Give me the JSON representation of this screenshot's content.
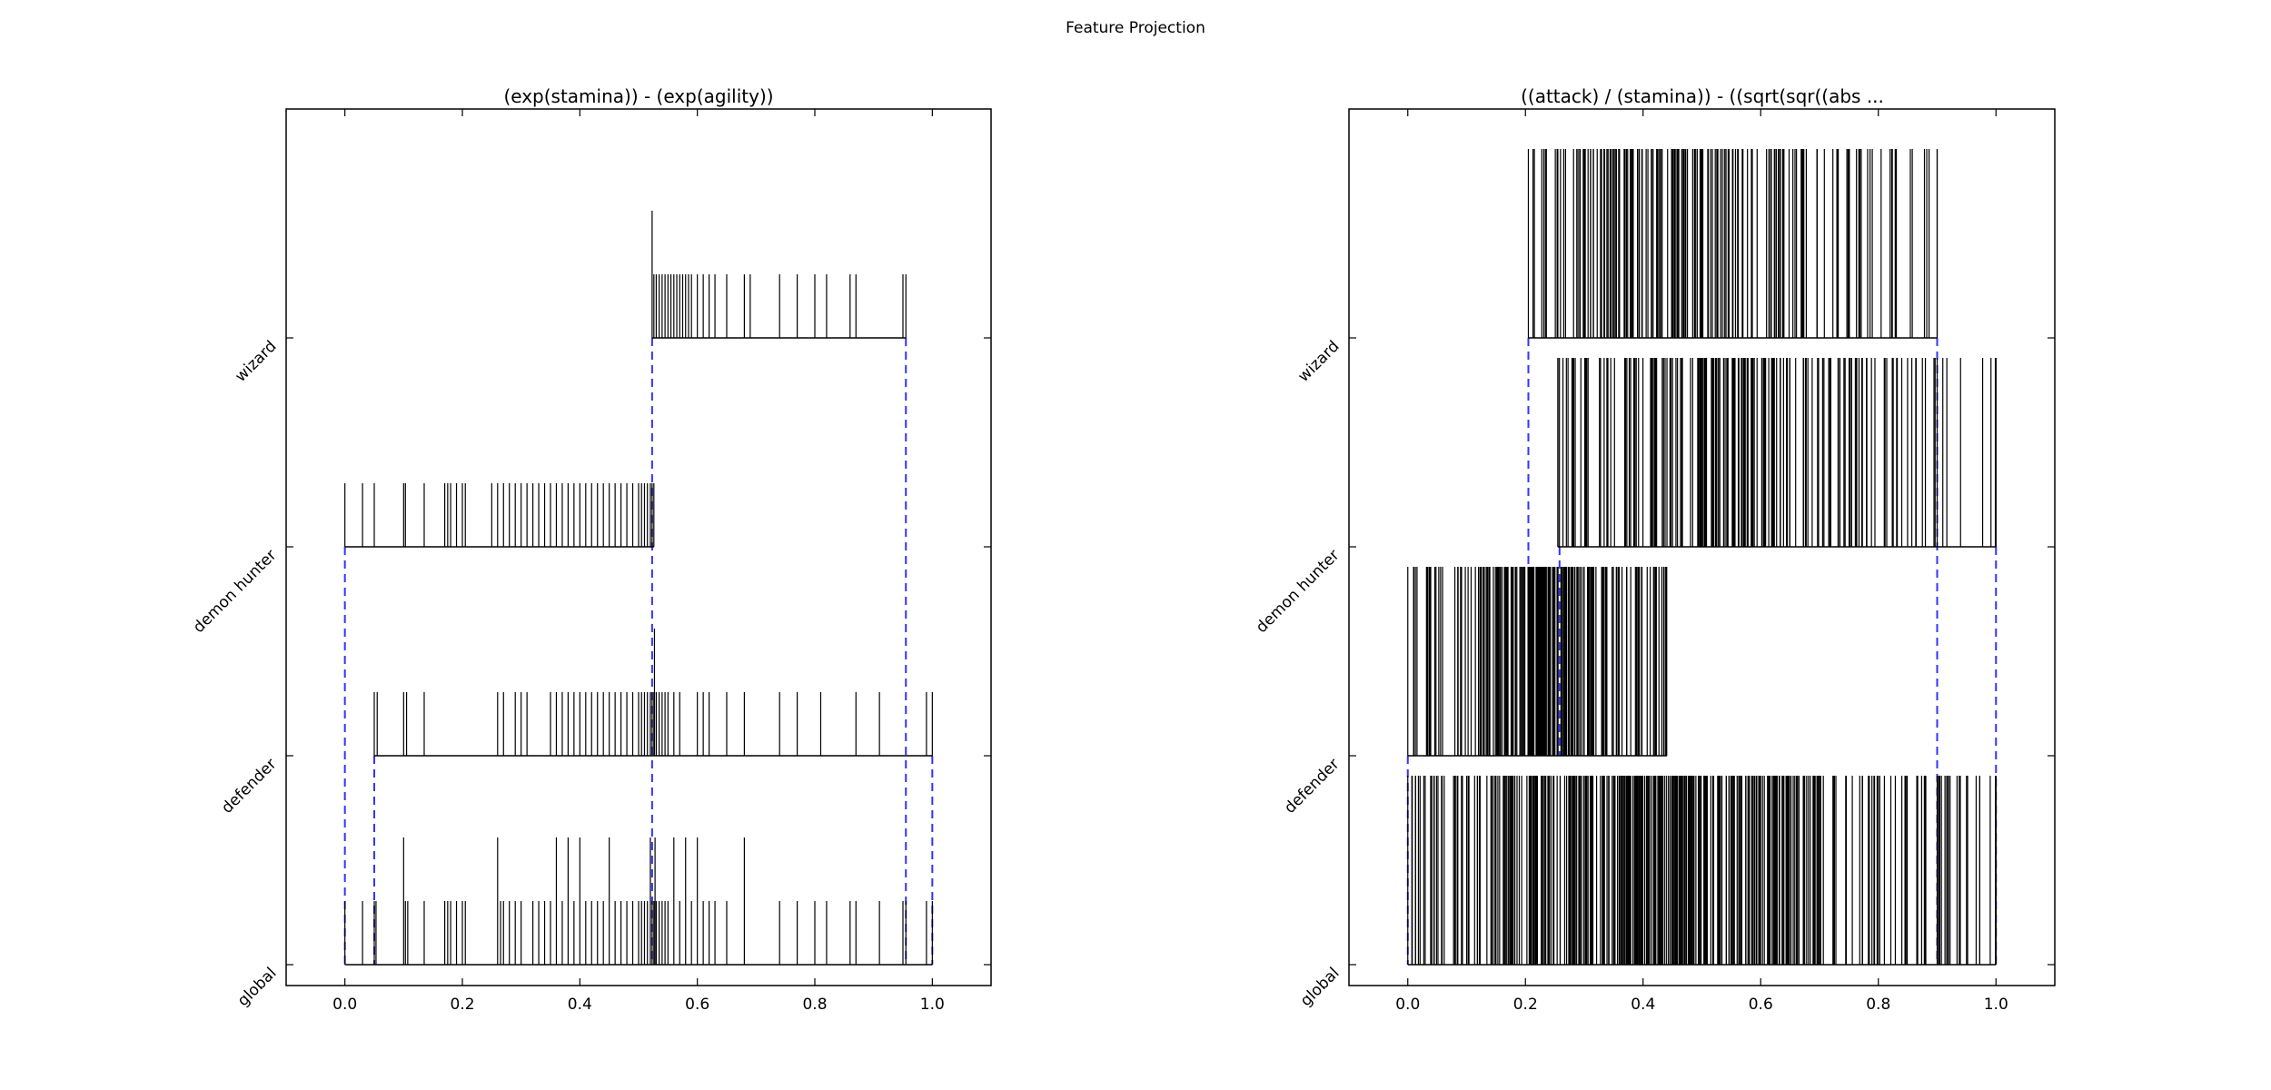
{
  "figure": {
    "suptitle": "Feature Projection"
  },
  "chart_data": [
    {
      "type": "rug",
      "title": "(exp(stamina)) - (exp(agility))",
      "xlim": [
        -0.1,
        1.1
      ],
      "xticks": [
        0.0,
        0.2,
        0.4,
        0.6,
        0.8,
        1.0
      ],
      "xtick_labels": [
        "0.0",
        "0.2",
        "0.4",
        "0.6",
        "0.8",
        "1.0"
      ],
      "categories": [
        "global",
        "defender",
        "demon hunter",
        "wizard"
      ],
      "rows": [
        {
          "name": "global",
          "values": [
            0.0,
            0.03,
            0.05,
            0.053,
            0.1,
            0.103,
            0.107,
            0.135,
            0.17,
            0.175,
            0.18,
            0.19,
            0.2,
            0.205,
            0.26,
            0.265,
            0.27,
            0.28,
            0.29,
            0.3,
            0.32,
            0.33,
            0.34,
            0.35,
            0.36,
            0.37,
            0.38,
            0.39,
            0.4,
            0.41,
            0.42,
            0.43,
            0.44,
            0.45,
            0.46,
            0.47,
            0.48,
            0.49,
            0.5,
            0.505,
            0.51,
            0.515,
            0.52,
            0.523,
            0.526,
            0.53,
            0.535,
            0.54,
            0.545,
            0.55,
            0.56,
            0.57,
            0.58,
            0.59,
            0.6,
            0.61,
            0.62,
            0.63,
            0.65,
            0.68,
            0.74,
            0.77,
            0.8,
            0.82,
            0.86,
            0.87,
            0.91,
            0.95,
            0.955,
            0.99,
            1.0
          ],
          "tall": [
            0.1,
            0.26,
            0.36,
            0.38,
            0.4,
            0.45,
            0.52,
            0.528,
            0.56,
            0.58,
            0.6,
            0.68
          ]
        },
        {
          "name": "defender",
          "values": [
            0.05,
            0.055,
            0.1,
            0.105,
            0.135,
            0.26,
            0.27,
            0.29,
            0.3,
            0.31,
            0.35,
            0.36,
            0.37,
            0.38,
            0.39,
            0.4,
            0.41,
            0.42,
            0.43,
            0.44,
            0.45,
            0.46,
            0.47,
            0.48,
            0.49,
            0.5,
            0.505,
            0.51,
            0.515,
            0.52,
            0.523,
            0.526,
            0.53,
            0.535,
            0.54,
            0.545,
            0.55,
            0.56,
            0.57,
            0.6,
            0.61,
            0.62,
            0.65,
            0.68,
            0.74,
            0.77,
            0.81,
            0.87,
            0.91,
            0.99,
            1.0
          ],
          "tall": [
            0.527
          ]
        },
        {
          "name": "demon hunter",
          "values": [
            0.0,
            0.03,
            0.05,
            0.1,
            0.103,
            0.135,
            0.17,
            0.175,
            0.18,
            0.19,
            0.2,
            0.205,
            0.25,
            0.26,
            0.27,
            0.28,
            0.29,
            0.3,
            0.31,
            0.32,
            0.33,
            0.34,
            0.35,
            0.36,
            0.37,
            0.38,
            0.39,
            0.4,
            0.41,
            0.42,
            0.43,
            0.44,
            0.45,
            0.46,
            0.47,
            0.48,
            0.49,
            0.5,
            0.505,
            0.51,
            0.515,
            0.52,
            0.523,
            0.526
          ],
          "tall": []
        },
        {
          "name": "wizard",
          "values": [
            0.523,
            0.526,
            0.53,
            0.535,
            0.54,
            0.545,
            0.55,
            0.555,
            0.56,
            0.565,
            0.57,
            0.575,
            0.58,
            0.585,
            0.59,
            0.6,
            0.61,
            0.62,
            0.63,
            0.65,
            0.68,
            0.69,
            0.74,
            0.77,
            0.8,
            0.82,
            0.86,
            0.87,
            0.95,
            0.955
          ],
          "tall": [
            0.523
          ]
        }
      ],
      "dashed_guides": [
        {
          "value": 0.0,
          "from_row": 2,
          "to_row": 0
        },
        {
          "value": 0.05,
          "from_row": 1,
          "to_row": 0
        },
        {
          "value": 0.523,
          "from_row": 3,
          "to_row": 0
        },
        {
          "value": 0.955,
          "from_row": 3,
          "to_row": 0
        },
        {
          "value": 1.0,
          "from_row": 1,
          "to_row": 0
        }
      ],
      "guide_color": "#3333ff"
    },
    {
      "type": "rug",
      "title": "((attack) / (stamina)) - ((sqrt(sqr((abs ...",
      "xlim": [
        -0.1,
        1.1
      ],
      "xticks": [
        0.0,
        0.2,
        0.4,
        0.6,
        0.8,
        1.0
      ],
      "xtick_labels": [
        "0.0",
        "0.2",
        "0.4",
        "0.6",
        "0.8",
        "1.0"
      ],
      "categories": [
        "global",
        "defender",
        "demon hunter",
        "wizard"
      ],
      "rows": [
        {
          "name": "global",
          "range": [
            0.0,
            1.0
          ],
          "count": 420,
          "seed": 7,
          "bias": 0.36,
          "extra": [
            0.88,
            0.9,
            1.0
          ]
        },
        {
          "name": "defender",
          "range": [
            0.0,
            0.44
          ],
          "count": 230,
          "seed": 11,
          "bias": 0.22,
          "extra": [
            0.44
          ]
        },
        {
          "name": "demon hunter",
          "range": [
            0.255,
            1.0
          ],
          "count": 200,
          "seed": 23,
          "bias": 0.45,
          "extra": [
            0.88,
            0.9,
            1.0
          ]
        },
        {
          "name": "wizard",
          "range": [
            0.205,
            0.9
          ],
          "count": 190,
          "seed": 37,
          "bias": 0.4,
          "extra": [
            0.82,
            0.83,
            0.9
          ]
        }
      ],
      "dashed_guides": [
        {
          "value": 0.0,
          "from_row": 1,
          "to_row": 0
        },
        {
          "value": 0.205,
          "from_row": 3,
          "to_row": 1
        },
        {
          "value": 0.258,
          "from_row": 2,
          "to_row": 1
        },
        {
          "value": 0.44,
          "from_row": 1,
          "to_row": 1
        },
        {
          "value": 0.9,
          "from_row": 3,
          "to_row": 0
        },
        {
          "value": 1.0,
          "from_row": 2,
          "to_row": 0
        }
      ],
      "guide_color": "#3333ff"
    }
  ]
}
